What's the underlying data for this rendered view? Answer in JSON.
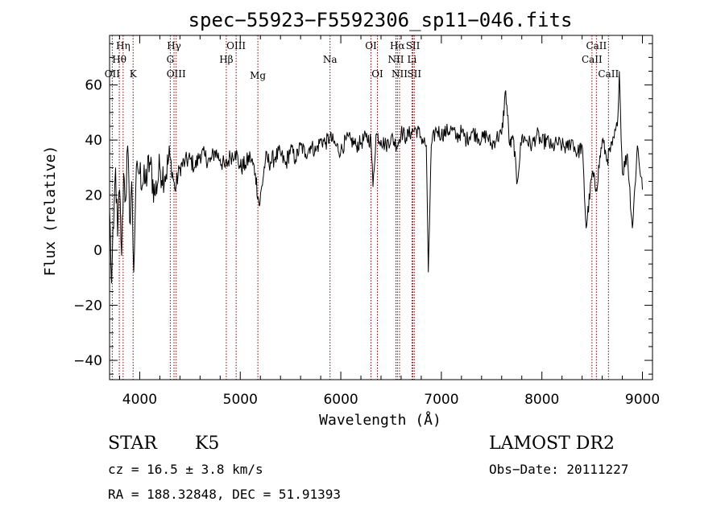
{
  "chart_data": {
    "type": "line",
    "title": "spec−55923−F5592306_sp11−046.fits",
    "xlabel": "Wavelength (Å)",
    "ylabel": "Flux (relative)",
    "xlim": [
      3700,
      9100
    ],
    "ylim": [
      -47,
      78
    ],
    "xticks": [
      4000,
      5000,
      6000,
      7000,
      8000,
      9000
    ],
    "yticks": [
      -40,
      -20,
      0,
      20,
      40,
      60
    ],
    "xtick_labels": [
      "4000",
      "5000",
      "6000",
      "7000",
      "8000",
      "9000"
    ],
    "ytick_labels": [
      "−40",
      "−20",
      "0",
      "20",
      "40",
      "60"
    ],
    "grid": false,
    "series": [
      {
        "x": [
          3700,
          3720,
          3740,
          3760,
          3780,
          3800,
          3820,
          3840,
          3860,
          3880,
          3900,
          3920,
          3940,
          3960,
          3980,
          4000,
          4050,
          4100,
          4150,
          4200,
          4250,
          4300,
          4350,
          4400,
          4450,
          4500,
          4550,
          4600,
          4650,
          4700,
          4750,
          4800,
          4850,
          4900,
          4950,
          5000,
          5050,
          5100,
          5150,
          5190,
          5250,
          5300,
          5350,
          5400,
          5450,
          5500,
          5550,
          5600,
          5650,
          5700,
          5750,
          5800,
          5850,
          5890,
          5950,
          6000,
          6050,
          6100,
          6150,
          6200,
          6250,
          6300,
          6320,
          6350,
          6400,
          6450,
          6500,
          6560,
          6600,
          6650,
          6700,
          6750,
          6800,
          6850,
          6870,
          6900,
          6950,
          7000,
          7050,
          7100,
          7150,
          7200,
          7250,
          7300,
          7350,
          7400,
          7450,
          7500,
          7550,
          7600,
          7640,
          7680,
          7720,
          7750,
          7800,
          7850,
          7900,
          7950,
          8000,
          8050,
          8100,
          8150,
          8200,
          8250,
          8300,
          8350,
          8400,
          8440,
          8500,
          8540,
          8600,
          8650,
          8700,
          8750,
          8770,
          8800,
          8850,
          8900,
          8950,
          9000
        ],
        "y": [
          15,
          -12,
          8,
          30,
          5,
          22,
          -2,
          28,
          18,
          38,
          10,
          25,
          -8,
          22,
          30,
          28,
          24,
          32,
          20,
          30,
          27,
          34,
          22,
          30,
          32,
          33,
          30,
          35,
          34,
          32,
          36,
          33,
          30,
          34,
          36,
          30,
          31,
          34,
          28,
          16,
          33,
          32,
          34,
          35,
          31,
          37,
          33,
          38,
          35,
          38,
          36,
          40,
          39,
          41,
          38,
          36,
          40,
          40,
          38,
          39,
          41,
          40,
          23,
          42,
          40,
          38,
          41,
          38,
          43,
          41,
          43,
          44,
          41,
          38,
          -8,
          38,
          44,
          42,
          43,
          44,
          41,
          43,
          40,
          43,
          42,
          40,
          42,
          38,
          41,
          42,
          58,
          38,
          40,
          24,
          41,
          40,
          38,
          42,
          39,
          40,
          37,
          39,
          38,
          37,
          40,
          35,
          38,
          8,
          28,
          22,
          40,
          33,
          38,
          45,
          65,
          28,
          35,
          8,
          38,
          22
        ]
      }
    ],
    "spectral_lines": [
      {
        "label": "OII",
        "x": 3727,
        "row": 3
      },
      {
        "label": "Hθ",
        "x": 3797,
        "row": 2
      },
      {
        "label": "Hη",
        "x": 3835,
        "row": 1
      },
      {
        "label": "K",
        "x": 3934,
        "row": 3
      },
      {
        "label": "Hγ",
        "x": 4341,
        "row": 1
      },
      {
        "label": "G",
        "x": 4304,
        "row": 2
      },
      {
        "label": "OIII",
        "x": 4363,
        "row": 3
      },
      {
        "label": "Hβ",
        "x": 4861,
        "row": 2
      },
      {
        "label": "OIII",
        "x": 4959,
        "row": 1
      },
      {
        "label": "Mg",
        "x": 5175,
        "row": 4
      },
      {
        "label": "Na",
        "x": 5893,
        "row": 2
      },
      {
        "label": "OI",
        "x": 6300,
        "row": 1
      },
      {
        "label": "OI",
        "x": 6364,
        "row": 3
      },
      {
        "label": "Hα",
        "x": 6563,
        "row": 1
      },
      {
        "label": "NII",
        "x": 6548,
        "row": 2
      },
      {
        "label": "NII",
        "x": 6584,
        "row": 3
      },
      {
        "label": "SII",
        "x": 6717,
        "row": 1
      },
      {
        "label": "Li",
        "x": 6708,
        "row": 2
      },
      {
        "label": "SII",
        "x": 6731,
        "row": 3
      },
      {
        "label": "CaII",
        "x": 8542,
        "row": 1
      },
      {
        "label": "CaII",
        "x": 8498,
        "row": 2
      },
      {
        "label": "CaII",
        "x": 8662,
        "row": 3
      }
    ]
  },
  "info": {
    "object_type": "STAR",
    "subclass": "K5",
    "survey": "LAMOST DR2",
    "redshift": "cz = 16.5 ± 3.8 km/s",
    "obs_date": "Obs−Date: 20111227",
    "coords": "RA = 188.32848, DEC =  51.91393"
  },
  "colors": {
    "spectrum": "#000000",
    "line_markers": "#8b0000",
    "axes": "#000000"
  }
}
